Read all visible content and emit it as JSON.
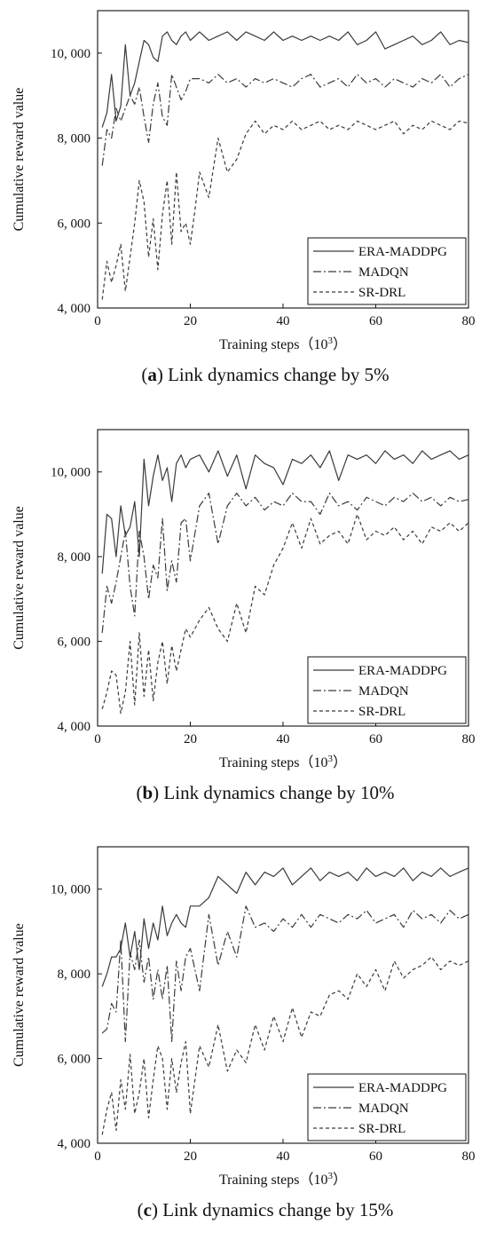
{
  "figure": {
    "legend": {
      "items": [
        "ERA-MADDPG",
        "MADQN",
        "SR-DRL"
      ],
      "placement": "bottom-right"
    },
    "line_colors": {
      "ERA-MADDPG": "#3a3a3a",
      "MADQN": "#3a3a3a",
      "SR-DRL": "#3a3a3a"
    }
  },
  "chart_data": [
    {
      "type": "line",
      "caption_letter": "a",
      "caption_text": " Link dynamics change by 5%",
      "xlabel": "Training steps（10",
      "xlabel_exp": "3",
      "xlabel_end": "）",
      "ylabel": "Cumulative reward value",
      "xlim": [
        0,
        80
      ],
      "ylim": [
        4000,
        11000
      ],
      "xticks": [
        0,
        20,
        40,
        60,
        80
      ],
      "xtick_labels": [
        "0",
        "20",
        "40",
        "60",
        "80"
      ],
      "yticks": [
        4000,
        6000,
        8000,
        10000
      ],
      "ytick_labels": [
        "4, 000",
        "6, 000",
        "8, 000",
        "10, 000"
      ],
      "grid": false,
      "series": [
        {
          "name": "ERA-MADDPG",
          "style": "solid",
          "x": [
            1,
            2,
            3,
            4,
            5,
            6,
            7,
            8,
            9,
            10,
            11,
            12,
            13,
            14,
            15,
            16,
            17,
            18,
            19,
            20,
            22,
            24,
            26,
            28,
            30,
            32,
            34,
            36,
            38,
            40,
            42,
            44,
            46,
            48,
            50,
            52,
            54,
            56,
            58,
            60,
            62,
            64,
            66,
            68,
            70,
            72,
            74,
            76,
            78,
            80
          ],
          "y": [
            8250,
            8600,
            9500,
            8400,
            8750,
            10200,
            9000,
            9300,
            9800,
            10300,
            10200,
            9900,
            9800,
            10400,
            10500,
            10300,
            10200,
            10400,
            10500,
            10300,
            10500,
            10300,
            10400,
            10500,
            10300,
            10500,
            10400,
            10300,
            10500,
            10300,
            10400,
            10300,
            10400,
            10300,
            10400,
            10300,
            10500,
            10200,
            10300,
            10500,
            10100,
            10200,
            10300,
            10400,
            10200,
            10300,
            10500,
            10200,
            10300,
            10250
          ]
        },
        {
          "name": "MADQN",
          "style": "dashdot",
          "x": [
            1,
            2,
            3,
            4,
            5,
            6,
            7,
            8,
            9,
            10,
            11,
            12,
            13,
            14,
            15,
            16,
            17,
            18,
            19,
            20,
            22,
            24,
            26,
            28,
            30,
            32,
            34,
            36,
            38,
            40,
            42,
            44,
            46,
            48,
            50,
            52,
            54,
            56,
            58,
            60,
            62,
            64,
            66,
            68,
            70,
            72,
            74,
            76,
            78,
            80
          ],
          "y": [
            7350,
            8200,
            8000,
            8700,
            8400,
            8700,
            9000,
            8800,
            9200,
            8500,
            7900,
            8800,
            9300,
            8500,
            8300,
            9500,
            9200,
            8900,
            9100,
            9400,
            9400,
            9300,
            9500,
            9300,
            9400,
            9200,
            9400,
            9300,
            9400,
            9300,
            9200,
            9400,
            9500,
            9200,
            9300,
            9400,
            9200,
            9500,
            9300,
            9400,
            9200,
            9400,
            9300,
            9200,
            9400,
            9300,
            9500,
            9200,
            9400,
            9500
          ]
        },
        {
          "name": "SR-DRL",
          "style": "dashed",
          "x": [
            1,
            2,
            3,
            4,
            5,
            6,
            7,
            8,
            9,
            10,
            11,
            12,
            13,
            14,
            15,
            16,
            17,
            18,
            19,
            20,
            21,
            22,
            24,
            26,
            28,
            30,
            32,
            34,
            36,
            38,
            40,
            42,
            44,
            46,
            48,
            50,
            52,
            54,
            56,
            58,
            60,
            62,
            64,
            66,
            68,
            70,
            72,
            74,
            76,
            78,
            80
          ],
          "y": [
            4200,
            5100,
            4600,
            5000,
            5500,
            4400,
            5200,
            6000,
            7000,
            6500,
            5200,
            6100,
            4900,
            6200,
            7000,
            5500,
            7200,
            5800,
            6000,
            5500,
            6300,
            7200,
            6600,
            8000,
            7200,
            7500,
            8100,
            8400,
            8100,
            8300,
            8200,
            8400,
            8200,
            8300,
            8400,
            8200,
            8300,
            8200,
            8400,
            8300,
            8200,
            8300,
            8400,
            8100,
            8300,
            8200,
            8400,
            8300,
            8200,
            8400,
            8350
          ]
        }
      ]
    },
    {
      "type": "line",
      "caption_letter": "b",
      "caption_text": " Link dynamics change by 10%",
      "xlabel": "Training steps（10",
      "xlabel_exp": "3",
      "xlabel_end": "）",
      "ylabel": "Cumulative reward value",
      "xlim": [
        0,
        80
      ],
      "ylim": [
        4000,
        11000
      ],
      "xticks": [
        0,
        20,
        40,
        60,
        80
      ],
      "xtick_labels": [
        "0",
        "20",
        "40",
        "60",
        "80"
      ],
      "yticks": [
        4000,
        6000,
        8000,
        10000
      ],
      "ytick_labels": [
        "4, 000",
        "6, 000",
        "8, 000",
        "10, 000"
      ],
      "grid": false,
      "series": [
        {
          "name": "ERA-MADDPG",
          "style": "solid",
          "x": [
            1,
            2,
            3,
            4,
            5,
            6,
            7,
            8,
            9,
            10,
            11,
            12,
            13,
            14,
            15,
            16,
            17,
            18,
            19,
            20,
            22,
            24,
            26,
            28,
            30,
            32,
            34,
            36,
            38,
            40,
            42,
            44,
            46,
            48,
            50,
            52,
            54,
            56,
            58,
            60,
            62,
            64,
            66,
            68,
            70,
            72,
            74,
            76,
            78,
            80
          ],
          "y": [
            7600,
            9000,
            8900,
            8000,
            9200,
            8500,
            8700,
            9300,
            8000,
            10300,
            9200,
            9900,
            10400,
            9800,
            10100,
            9300,
            10200,
            10400,
            10100,
            10300,
            10400,
            10000,
            10500,
            9900,
            10400,
            9600,
            10400,
            10200,
            10100,
            9700,
            10300,
            10200,
            10400,
            10100,
            10500,
            9800,
            10400,
            10300,
            10400,
            10200,
            10500,
            10300,
            10400,
            10200,
            10500,
            10300,
            10400,
            10500,
            10300,
            10400
          ]
        },
        {
          "name": "MADQN",
          "style": "dashdot",
          "x": [
            1,
            2,
            3,
            4,
            5,
            6,
            7,
            8,
            9,
            10,
            11,
            12,
            13,
            14,
            15,
            16,
            17,
            18,
            19,
            20,
            22,
            24,
            26,
            28,
            30,
            32,
            34,
            36,
            38,
            40,
            42,
            44,
            46,
            48,
            50,
            52,
            54,
            56,
            58,
            60,
            62,
            64,
            66,
            68,
            70,
            72,
            74,
            76,
            78,
            80
          ],
          "y": [
            6200,
            7300,
            6900,
            7400,
            8000,
            8600,
            7300,
            6600,
            8600,
            8000,
            7000,
            7800,
            7500,
            8900,
            7200,
            7900,
            7400,
            8800,
            8900,
            7900,
            9200,
            9500,
            8300,
            9200,
            9500,
            9200,
            9400,
            9100,
            9300,
            9200,
            9500,
            9300,
            9300,
            9000,
            9500,
            9200,
            9300,
            9100,
            9400,
            9300,
            9200,
            9400,
            9300,
            9500,
            9300,
            9400,
            9200,
            9400,
            9300,
            9350
          ]
        },
        {
          "name": "SR-DRL",
          "style": "dashed",
          "x": [
            1,
            2,
            3,
            4,
            5,
            6,
            7,
            8,
            9,
            10,
            11,
            12,
            13,
            14,
            15,
            16,
            17,
            18,
            19,
            20,
            22,
            24,
            26,
            28,
            30,
            32,
            34,
            36,
            38,
            40,
            42,
            44,
            46,
            48,
            50,
            52,
            54,
            56,
            58,
            60,
            62,
            64,
            66,
            68,
            70,
            72,
            74,
            76,
            78,
            80
          ],
          "y": [
            4400,
            4800,
            5300,
            5200,
            4300,
            4800,
            6000,
            4500,
            6200,
            4700,
            5800,
            4600,
            5500,
            6000,
            5000,
            5900,
            5300,
            5800,
            6300,
            6100,
            6500,
            6800,
            6300,
            6000,
            6900,
            6200,
            7300,
            7100,
            7800,
            8200,
            8800,
            8200,
            8900,
            8300,
            8500,
            8600,
            8300,
            9000,
            8400,
            8600,
            8500,
            8700,
            8400,
            8600,
            8300,
            8700,
            8600,
            8800,
            8600,
            8800
          ]
        }
      ]
    },
    {
      "type": "line",
      "caption_letter": "c",
      "caption_text": " Link dynamics change by 15%",
      "xlabel": "Training steps（10",
      "xlabel_exp": "3",
      "xlabel_end": "）",
      "ylabel": "Cumulative reward value",
      "xlim": [
        0,
        80
      ],
      "ylim": [
        4000,
        11000
      ],
      "xticks": [
        0,
        20,
        40,
        60,
        80
      ],
      "xtick_labels": [
        "0",
        "20",
        "40",
        "60",
        "80"
      ],
      "yticks": [
        4000,
        6000,
        8000,
        10000
      ],
      "ytick_labels": [
        "4, 000",
        "6, 000",
        "8, 000",
        "10, 000"
      ],
      "grid": false,
      "series": [
        {
          "name": "ERA-MADDPG",
          "style": "solid",
          "x": [
            1,
            2,
            3,
            4,
            5,
            6,
            7,
            8,
            9,
            10,
            11,
            12,
            13,
            14,
            15,
            16,
            17,
            18,
            19,
            20,
            22,
            24,
            26,
            28,
            30,
            32,
            34,
            36,
            38,
            40,
            42,
            44,
            46,
            48,
            50,
            52,
            54,
            56,
            58,
            60,
            62,
            64,
            66,
            68,
            70,
            72,
            74,
            76,
            78,
            80
          ],
          "y": [
            7700,
            8000,
            8400,
            8400,
            8600,
            9200,
            8400,
            9000,
            8100,
            9300,
            8600,
            9200,
            8800,
            9600,
            8900,
            9200,
            9400,
            9200,
            9100,
            9600,
            9600,
            9800,
            10300,
            10100,
            9900,
            10400,
            10100,
            10400,
            10300,
            10500,
            10100,
            10300,
            10500,
            10200,
            10400,
            10300,
            10400,
            10200,
            10500,
            10300,
            10400,
            10300,
            10500,
            10200,
            10400,
            10300,
            10500,
            10300,
            10400,
            10500
          ]
        },
        {
          "name": "MADQN",
          "style": "dashdot",
          "x": [
            1,
            2,
            3,
            4,
            5,
            6,
            7,
            8,
            9,
            10,
            11,
            12,
            13,
            14,
            15,
            16,
            17,
            18,
            19,
            20,
            22,
            24,
            26,
            28,
            30,
            32,
            34,
            36,
            38,
            40,
            42,
            44,
            46,
            48,
            50,
            52,
            54,
            56,
            58,
            60,
            62,
            64,
            66,
            68,
            70,
            72,
            74,
            76,
            78,
            80
          ],
          "y": [
            6600,
            6700,
            7300,
            7100,
            8800,
            6400,
            8500,
            8100,
            8800,
            7800,
            8400,
            7400,
            8100,
            7400,
            8200,
            6400,
            8300,
            7600,
            8400,
            8600,
            7600,
            9400,
            8200,
            9000,
            8400,
            9600,
            9100,
            9200,
            9000,
            9300,
            9100,
            9400,
            9100,
            9400,
            9300,
            9200,
            9400,
            9300,
            9500,
            9200,
            9300,
            9400,
            9100,
            9500,
            9300,
            9400,
            9200,
            9500,
            9300,
            9400
          ]
        },
        {
          "name": "SR-DRL",
          "style": "dashed",
          "x": [
            1,
            2,
            3,
            4,
            5,
            6,
            7,
            8,
            9,
            10,
            11,
            12,
            13,
            14,
            15,
            16,
            17,
            18,
            19,
            20,
            22,
            24,
            26,
            28,
            30,
            32,
            34,
            36,
            38,
            40,
            42,
            44,
            46,
            48,
            50,
            52,
            54,
            56,
            58,
            60,
            62,
            64,
            66,
            68,
            70,
            72,
            74,
            76,
            78,
            80
          ],
          "y": [
            4200,
            4800,
            5200,
            4300,
            5500,
            4800,
            6100,
            4700,
            5200,
            6000,
            4600,
            5500,
            6300,
            6000,
            4800,
            6000,
            5200,
            5900,
            6400,
            4700,
            6300,
            5800,
            6800,
            5700,
            6200,
            5900,
            6800,
            6200,
            7000,
            6400,
            7200,
            6500,
            7100,
            7000,
            7500,
            7600,
            7400,
            8000,
            7700,
            8100,
            7600,
            8300,
            7900,
            8100,
            8200,
            8400,
            8100,
            8300,
            8200,
            8300
          ]
        }
      ]
    }
  ]
}
